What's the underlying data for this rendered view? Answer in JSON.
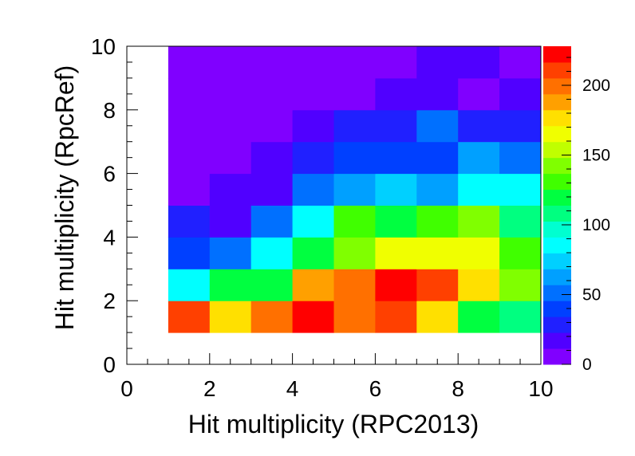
{
  "chart_data": {
    "type": "heatmap",
    "title": "",
    "xlabel": "Hit multiplicity (RPC2013)",
    "ylabel": "Hit multiplicity (RpcRef)",
    "xlim": [
      0,
      10
    ],
    "ylim": [
      0,
      10
    ],
    "x_ticks": [
      "0",
      "2",
      "4",
      "6",
      "8",
      "10"
    ],
    "y_ticks": [
      "0",
      "2",
      "4",
      "6",
      "8",
      "10"
    ],
    "x_bins": [
      1,
      2,
      3,
      4,
      5,
      6,
      7,
      8,
      9
    ],
    "y_bins": [
      1,
      2,
      3,
      4,
      5,
      6,
      7,
      8,
      9
    ],
    "z": [
      [
        210,
        180,
        200,
        225,
        200,
        210,
        180,
        115,
        105
      ],
      [
        80,
        115,
        125,
        190,
        200,
        225,
        215,
        175,
        145
      ],
      [
        40,
        55,
        90,
        125,
        145,
        165,
        165,
        165,
        130
      ],
      [
        25,
        20,
        55,
        90,
        130,
        125,
        130,
        140,
        105
      ],
      [
        5,
        15,
        20,
        50,
        60,
        75,
        60,
        90,
        80
      ],
      [
        5,
        5,
        15,
        25,
        35,
        35,
        35,
        60,
        50
      ],
      [
        5,
        5,
        5,
        15,
        25,
        25,
        50,
        25,
        25
      ],
      [
        5,
        5,
        5,
        5,
        5,
        12,
        12,
        8,
        12
      ],
      [
        5,
        5,
        5,
        5,
        5,
        5,
        12,
        12,
        5
      ]
    ],
    "colorbar": {
      "zmin": 0,
      "zmax": 228,
      "ticks": [
        "0",
        "50",
        "100",
        "150",
        "200"
      ],
      "colors": [
        "#8000ff",
        "#5000ff",
        "#2020ff",
        "#0040ff",
        "#0070ff",
        "#00a0ff",
        "#00d0ff",
        "#00ffff",
        "#00ffd0",
        "#00ff80",
        "#00ff40",
        "#40ff00",
        "#80ff00",
        "#c0ff00",
        "#f0ff00",
        "#ffe000",
        "#ffa000",
        "#ff7000",
        "#ff4000",
        "#ff0000"
      ]
    }
  }
}
